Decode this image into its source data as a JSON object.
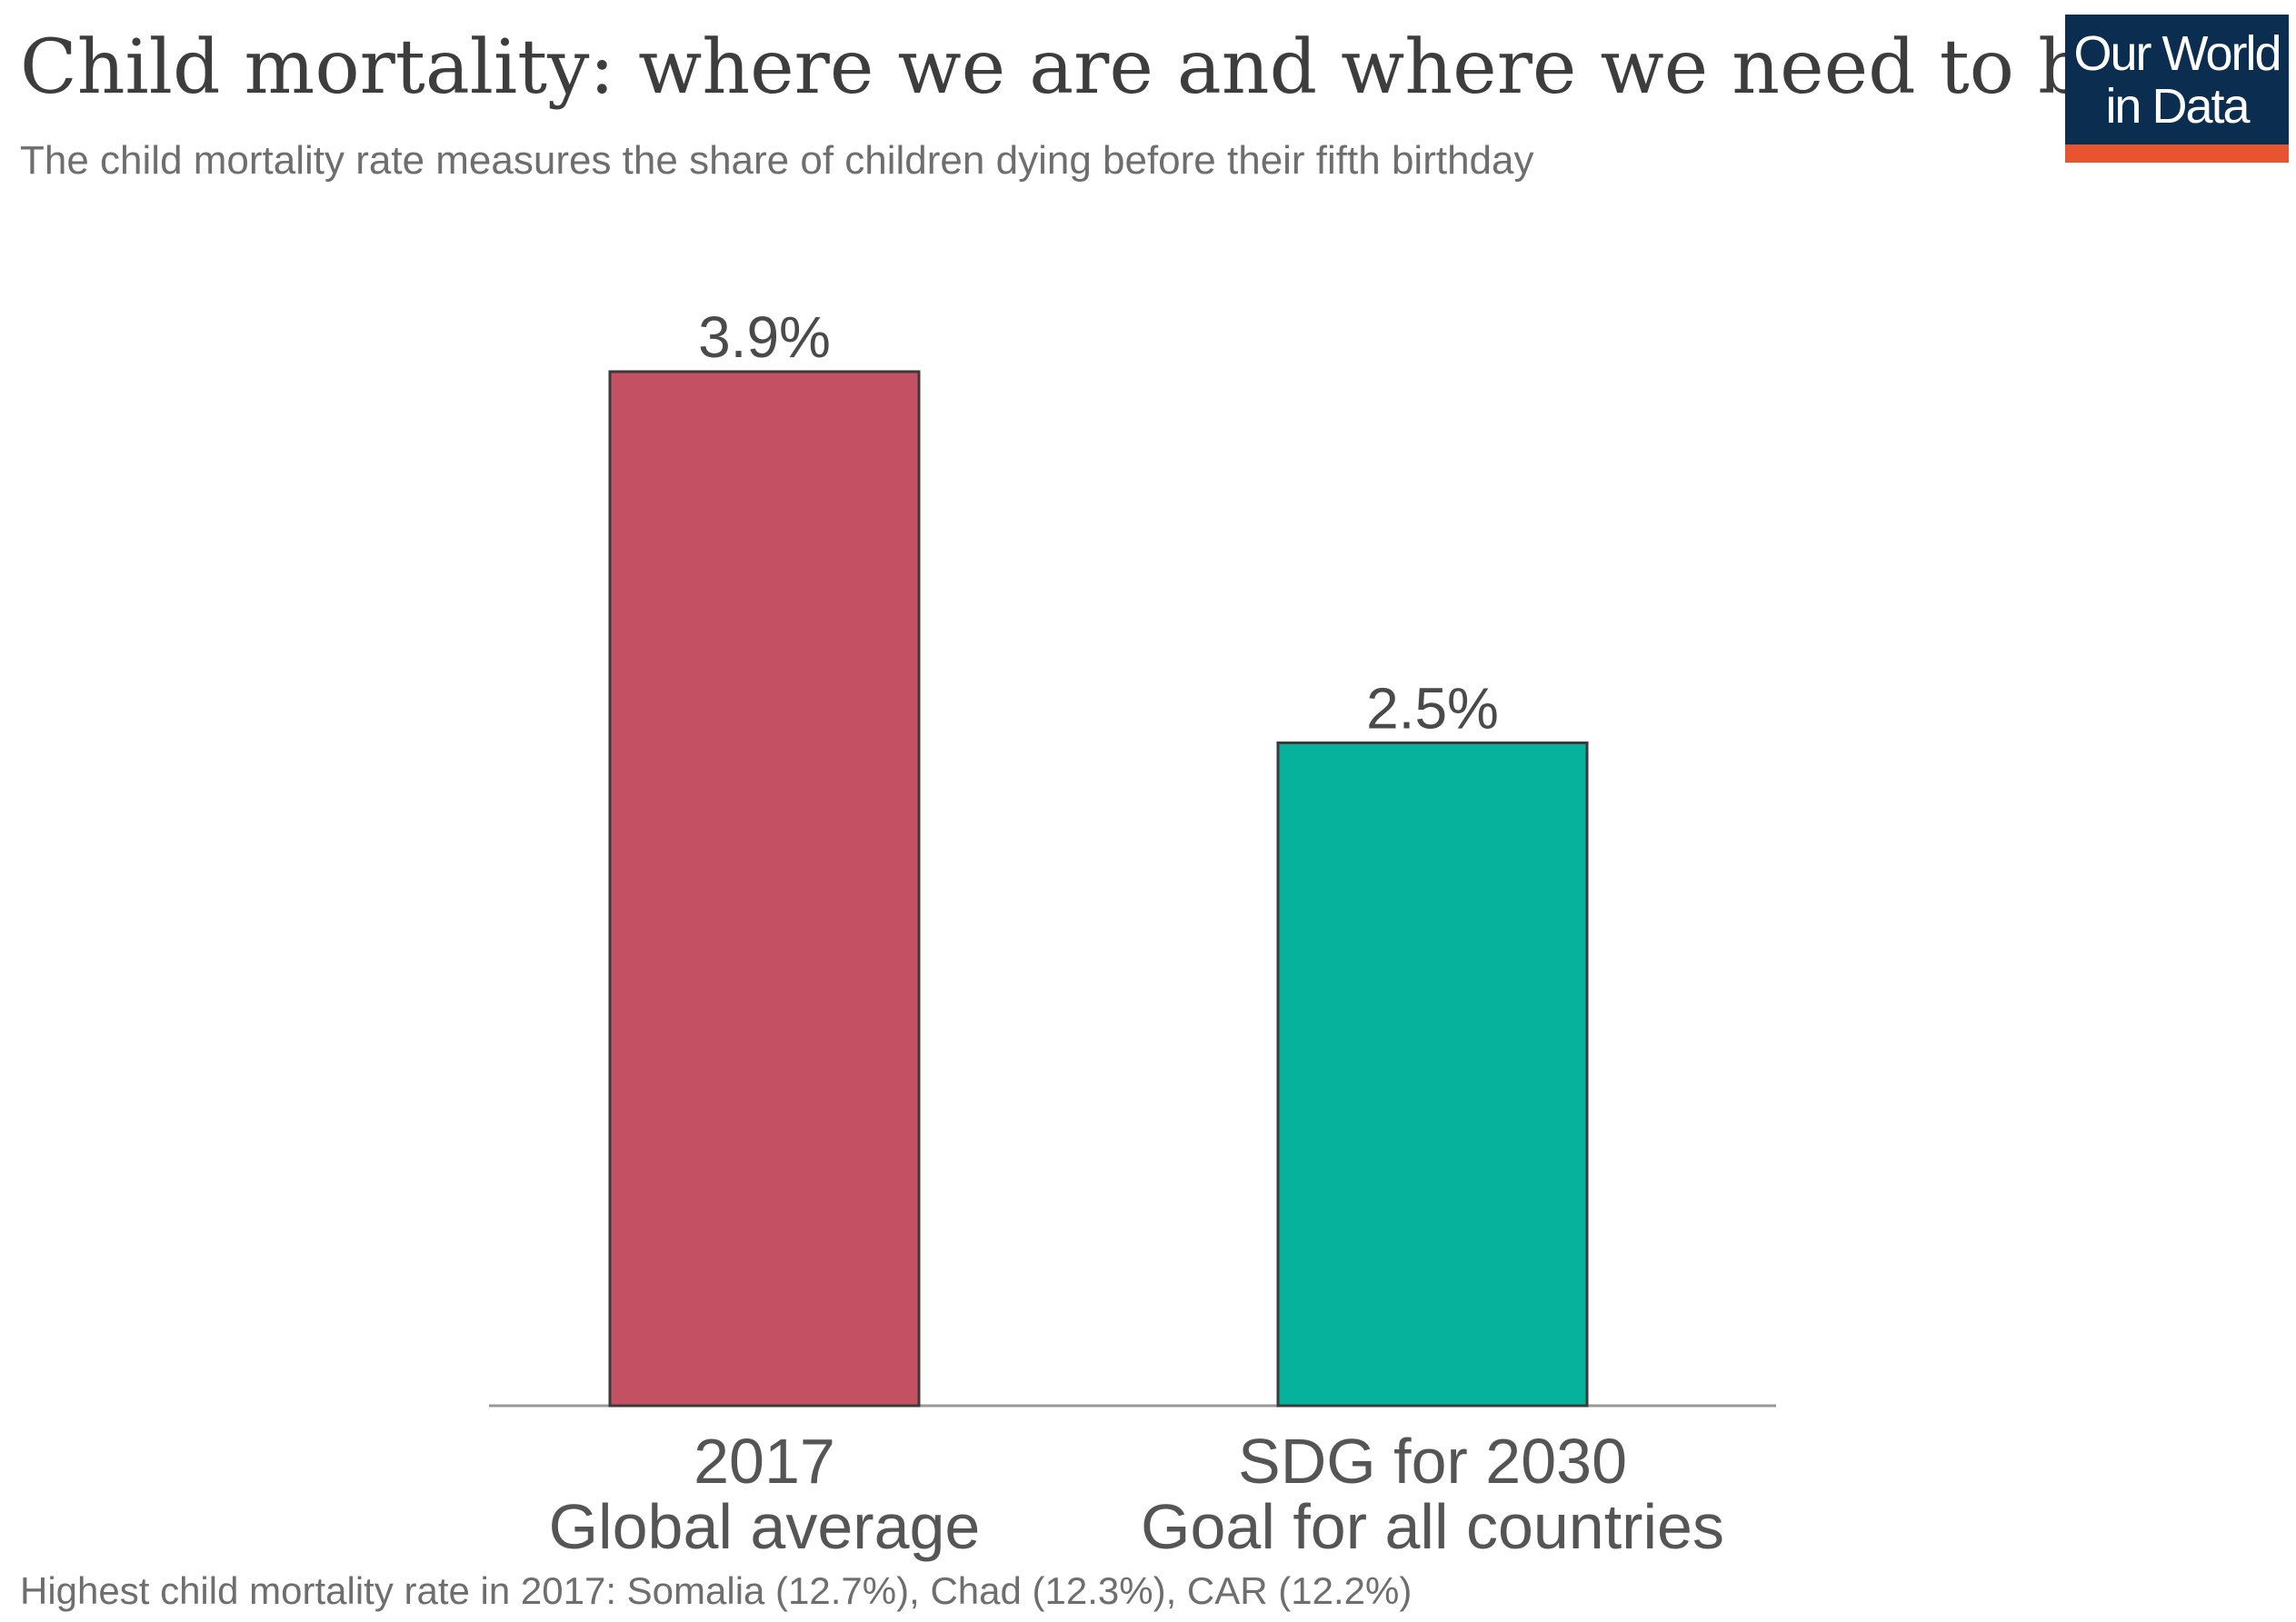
{
  "header": {
    "title": "Child mortality: where we are and where we need to be",
    "subtitle": "The child mortality rate measures the share of children dying before their fifth birthday"
  },
  "logo": {
    "line1": "Our World",
    "line2": "in Data",
    "background_color": "#0b2d4f",
    "accent_color": "#e8542f"
  },
  "footnote": "Highest child mortality rate in 2017: Somalia (12.7%), Chad (12.3%), CAR (12.2%)",
  "chart_data": {
    "type": "bar",
    "title": "Child mortality: where we are and where we need to be",
    "subtitle": "The child mortality rate measures the share of children dying before their fifth birthday",
    "categories": [
      [
        "2017",
        "Global average"
      ],
      [
        "SDG for 2030",
        "Goal for all countries"
      ]
    ],
    "values": [
      3.9,
      2.5
    ],
    "value_labels": [
      "3.9%",
      "2.5%"
    ],
    "colors": [
      "#c45163",
      "#06b29c"
    ],
    "ylim": [
      0,
      3.9
    ],
    "grid": false,
    "legend": "none",
    "xlabel": "",
    "ylabel": ""
  }
}
